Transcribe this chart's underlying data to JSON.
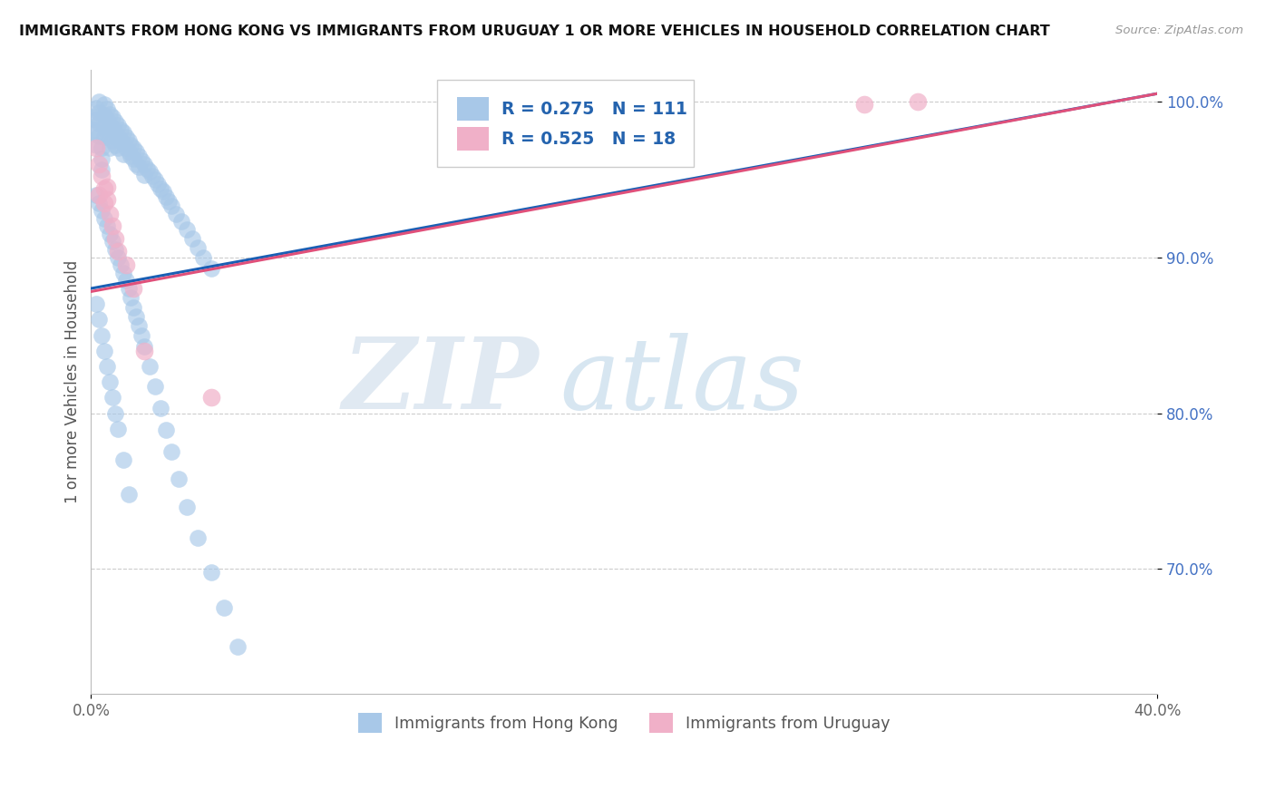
{
  "title": "IMMIGRANTS FROM HONG KONG VS IMMIGRANTS FROM URUGUAY 1 OR MORE VEHICLES IN HOUSEHOLD CORRELATION CHART",
  "source": "Source: ZipAtlas.com",
  "ylabel": "1 or more Vehicles in Household",
  "xmin": 0.0,
  "xmax": 0.4,
  "ymin": 0.62,
  "ymax": 1.02,
  "ytick_vals": [
    1.0,
    0.9,
    0.8,
    0.7
  ],
  "ytick_labels": [
    "100.0%",
    "90.0%",
    "80.0%",
    "70.0%"
  ],
  "xtick_positions": [
    0.0,
    0.4
  ],
  "xtick_labels": [
    "0.0%",
    "40.0%"
  ],
  "hk_color": "#a8c8e8",
  "uy_color": "#f0b0c8",
  "hk_line_color": "#1a5fb4",
  "uy_line_color": "#e0507a",
  "R_hk": 0.275,
  "N_hk": 111,
  "R_uy": 0.525,
  "N_uy": 18,
  "legend_text_color": "#2463ae",
  "watermark_zip": "ZIP",
  "watermark_atlas": "atlas",
  "hk_points_x": [
    0.001,
    0.001,
    0.002,
    0.002,
    0.002,
    0.002,
    0.003,
    0.003,
    0.003,
    0.003,
    0.004,
    0.004,
    0.004,
    0.005,
    0.005,
    0.005,
    0.005,
    0.006,
    0.006,
    0.006,
    0.007,
    0.007,
    0.007,
    0.007,
    0.008,
    0.008,
    0.008,
    0.009,
    0.009,
    0.009,
    0.01,
    0.01,
    0.01,
    0.011,
    0.011,
    0.012,
    0.012,
    0.012,
    0.013,
    0.013,
    0.014,
    0.014,
    0.015,
    0.015,
    0.016,
    0.016,
    0.017,
    0.017,
    0.018,
    0.018,
    0.019,
    0.02,
    0.02,
    0.021,
    0.022,
    0.023,
    0.024,
    0.025,
    0.026,
    0.027,
    0.028,
    0.029,
    0.03,
    0.032,
    0.034,
    0.036,
    0.038,
    0.04,
    0.042,
    0.045,
    0.002,
    0.003,
    0.004,
    0.005,
    0.006,
    0.007,
    0.008,
    0.009,
    0.01,
    0.011,
    0.012,
    0.013,
    0.014,
    0.015,
    0.016,
    0.017,
    0.018,
    0.019,
    0.02,
    0.022,
    0.024,
    0.026,
    0.028,
    0.03,
    0.033,
    0.036,
    0.04,
    0.045,
    0.05,
    0.055,
    0.002,
    0.003,
    0.004,
    0.005,
    0.006,
    0.007,
    0.008,
    0.009,
    0.01,
    0.012,
    0.014
  ],
  "hk_points_y": [
    0.99,
    0.982,
    0.996,
    0.988,
    0.98,
    0.972,
    1.0,
    0.993,
    0.986,
    0.978,
    0.97,
    0.963,
    0.956,
    0.998,
    0.991,
    0.984,
    0.977,
    0.995,
    0.988,
    0.98,
    0.992,
    0.985,
    0.978,
    0.97,
    0.99,
    0.983,
    0.975,
    0.987,
    0.98,
    0.972,
    0.985,
    0.978,
    0.97,
    0.982,
    0.975,
    0.98,
    0.973,
    0.966,
    0.977,
    0.97,
    0.975,
    0.968,
    0.972,
    0.965,
    0.97,
    0.963,
    0.968,
    0.96,
    0.965,
    0.958,
    0.962,
    0.96,
    0.953,
    0.957,
    0.955,
    0.952,
    0.95,
    0.947,
    0.944,
    0.942,
    0.939,
    0.936,
    0.933,
    0.928,
    0.923,
    0.918,
    0.912,
    0.906,
    0.9,
    0.893,
    0.94,
    0.935,
    0.93,
    0.925,
    0.92,
    0.915,
    0.91,
    0.905,
    0.9,
    0.895,
    0.89,
    0.885,
    0.88,
    0.874,
    0.868,
    0.862,
    0.856,
    0.85,
    0.843,
    0.83,
    0.817,
    0.803,
    0.789,
    0.775,
    0.758,
    0.74,
    0.72,
    0.698,
    0.675,
    0.65,
    0.87,
    0.86,
    0.85,
    0.84,
    0.83,
    0.82,
    0.81,
    0.8,
    0.79,
    0.77,
    0.748
  ],
  "uy_points_x": [
    0.002,
    0.003,
    0.003,
    0.004,
    0.005,
    0.005,
    0.006,
    0.006,
    0.007,
    0.008,
    0.009,
    0.01,
    0.013,
    0.016,
    0.02,
    0.045,
    0.31,
    0.29
  ],
  "uy_points_y": [
    0.97,
    0.96,
    0.94,
    0.952,
    0.944,
    0.935,
    0.945,
    0.937,
    0.928,
    0.92,
    0.912,
    0.904,
    0.895,
    0.88,
    0.84,
    0.81,
    1.0,
    0.998
  ],
  "hk_line_x0": 0.0,
  "hk_line_y0": 0.88,
  "hk_line_x1": 0.4,
  "hk_line_y1": 1.005,
  "uy_line_x0": 0.0,
  "uy_line_y0": 0.878,
  "uy_line_x1": 0.4,
  "uy_line_y1": 1.005
}
